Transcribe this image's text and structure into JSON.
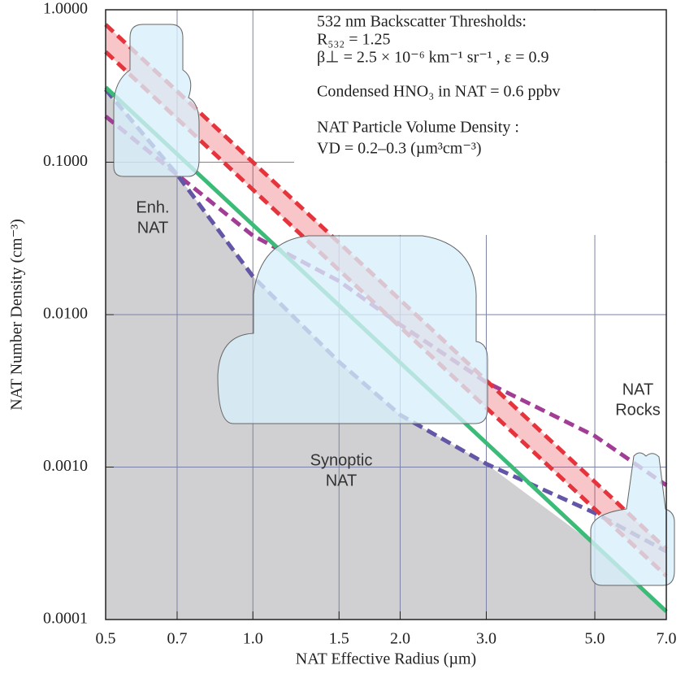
{
  "chart_data": {
    "type": "line",
    "log_x": true,
    "log_y": true,
    "xlabel": "NAT Effective Radius (µm)",
    "ylabel": "NAT Number Density (cm⁻³)",
    "x": [
      0.5,
      0.7,
      1.0,
      1.5,
      2.0,
      3.0,
      5.0,
      7.0
    ],
    "xlim": [
      0.5,
      7.0
    ],
    "xticks": [
      0.5,
      0.7,
      {
        "value": 1.0,
        "label": "1.0"
      },
      1.5,
      {
        "value": 2.0,
        "label": "2.0"
      },
      {
        "value": 3.0,
        "label": "3.0"
      },
      {
        "value": 5.0,
        "label": "5.0"
      },
      {
        "value": 7.0,
        "label": "7.0"
      }
    ],
    "ylim": [
      0.0001,
      1.0
    ],
    "yticks": [
      {
        "value": 0.0001,
        "label": "0.0001"
      },
      {
        "value": 0.001,
        "label": "0.0010"
      },
      {
        "value": 0.01,
        "label": "0.0100"
      },
      {
        "value": 0.1,
        "label": "0.1000"
      },
      {
        "value": 1.0,
        "label": "1.0000"
      }
    ],
    "grid": true,
    "legend_headings": [
      "532 nm Backscatter Thresholds:",
      "NAT Particle Volume Density :"
    ],
    "series": [
      {
        "name": "R₅₃₂ = 1.25",
        "color": "#a23d96",
        "dashed": true,
        "values": [
          0.2,
          0.083,
          0.033,
          0.0166,
          0.0086,
          0.0036,
          0.0016,
          0.00076
        ]
      },
      {
        "name": "β⊥ = 2.5 × 10⁻⁶ km⁻¹ sr⁻¹ , ε = 0.9",
        "color": "#6456a6",
        "dashed": true,
        "values": [
          0.3,
          0.083,
          0.0178,
          0.0049,
          0.0022,
          0.00105,
          0.0005,
          0.00028
        ]
      },
      {
        "name": "Condensed HNO₃ in NAT = 0.6 ppbv",
        "color": "#3cbb78",
        "dashed": false,
        "values": [
          0.31,
          0.113,
          0.0388,
          0.0115,
          0.00484,
          0.00144,
          0.00031,
          0.000113
        ]
      },
      {
        "name": "VD = 0.2–0.3 (µm³cm⁻³)",
        "color": "#e5343c",
        "dashed": true,
        "values": [
          0.8,
          0.292,
          0.1,
          0.0296,
          0.0125,
          0.0037,
          0.0008,
          0.00029
        ],
        "lower_values": [
          0.53,
          0.193,
          0.066,
          0.0196,
          0.0083,
          0.00245,
          0.00053,
          0.000193
        ]
      }
    ],
    "annotations": [
      {
        "lines": [
          "Enh.",
          "NAT"
        ]
      },
      {
        "lines": [
          "Synoptic",
          "NAT"
        ]
      },
      {
        "lines": [
          "NAT",
          "Rocks"
        ]
      }
    ]
  }
}
